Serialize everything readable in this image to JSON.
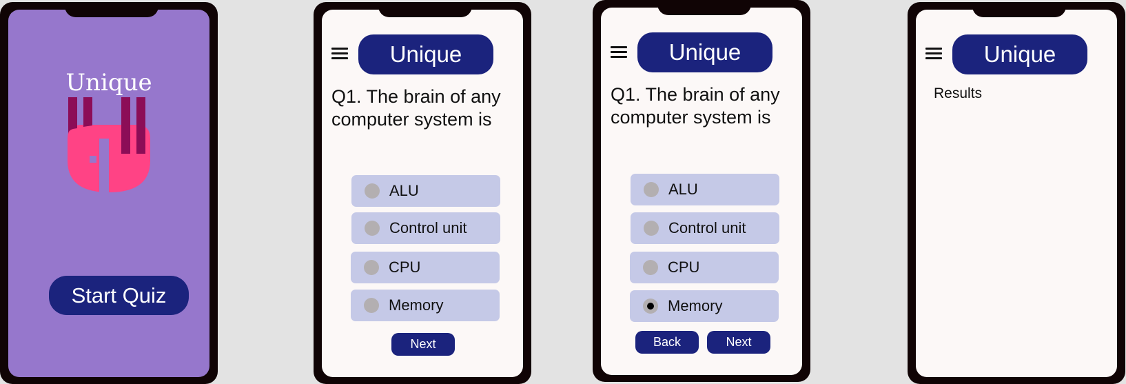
{
  "brand": "Unique",
  "colors": {
    "brand_pill": "#1b237d",
    "splash_bg": "#9677cc",
    "screen_bg": "#fcf8f7",
    "option_bg": "#c5c9e7",
    "radio": "#b3afb1",
    "logo_bar": "#8c0d57",
    "logo_shape": "#ff4385"
  },
  "splash": {
    "title": "Unique",
    "start_button": "Start Quiz"
  },
  "quiz": {
    "menu_icon": "hamburger-menu-icon",
    "question": "Q1. The brain of any computer system is",
    "options": [
      "ALU",
      "Control unit",
      "CPU",
      "Memory"
    ],
    "next_label": "Next",
    "back_label": "Back",
    "selected_option_screen3": "Memory"
  },
  "results": {
    "label": "Results"
  }
}
